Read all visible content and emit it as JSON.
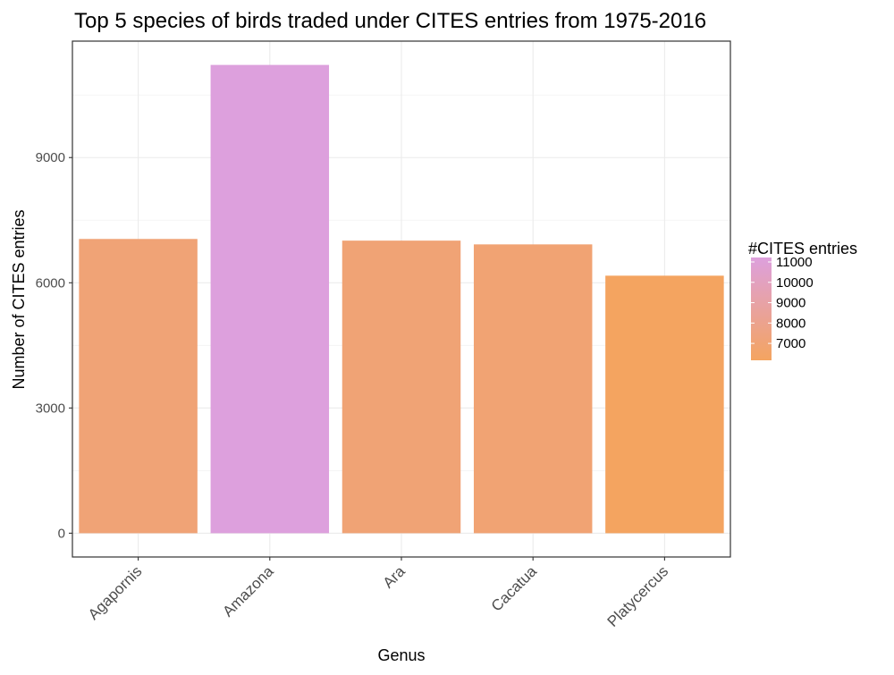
{
  "chart_data": {
    "type": "bar",
    "title": "Top 5 species of birds traded under CITES entries from 1975-2016",
    "xlabel": "Genus",
    "ylabel": "Number of CITES entries",
    "categories": [
      "Agapornis",
      "Amazona",
      "Ara",
      "Cacatua",
      "Platycercus"
    ],
    "values": [
      7050,
      11220,
      7010,
      6920,
      6170
    ],
    "ylim": [
      -570,
      11790
    ],
    "yticks": [
      0,
      3000,
      6000,
      9000
    ],
    "ytick_labels": [
      "0",
      "3000",
      "6000",
      "9000"
    ],
    "grid": true,
    "legend": {
      "title": "#CITES entries",
      "placement": "right",
      "breaks": [
        11000,
        10000,
        9000,
        8000,
        7000
      ],
      "labels": [
        "11000",
        "10000",
        "9000",
        "8000",
        "7000"
      ],
      "range": [
        6170,
        11220
      ],
      "low_color": "#F4A460",
      "high_color": "#DDA0DD"
    }
  }
}
